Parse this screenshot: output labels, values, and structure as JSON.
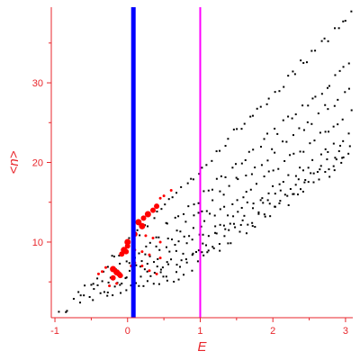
{
  "chart_data": {
    "type": "scatter",
    "title": "",
    "xlabel": "E",
    "ylabel": "<n>",
    "xlim": [
      -1.05,
      3.1
    ],
    "ylim": [
      0.5,
      39.5
    ],
    "x_ticks": [
      -1,
      0,
      1,
      2,
      3
    ],
    "y_ticks": [
      10,
      20,
      30
    ],
    "grid": false,
    "colors": {
      "axis": "#e8262b",
      "background_points": "#000000",
      "highlight_points": "#ff0000",
      "vline_blue": "#0000ff",
      "vline_magenta": "#ff00ff"
    },
    "vlines": [
      {
        "x": 0.08,
        "color": "#0000ff",
        "width": "thick"
      },
      {
        "x": 1.0,
        "color": "#ff00ff",
        "width": "thin"
      }
    ],
    "series": [
      {
        "color": "#000000",
        "marker": "dot",
        "bands": [
          {
            "x0": -0.95,
            "y0": 0.8,
            "x1": 3.1,
            "y1": 39.0,
            "n": 70
          },
          {
            "x0": -0.7,
            "y0": 2.0,
            "x1": 3.1,
            "y1": 32.5,
            "n": 58
          },
          {
            "x0": -0.5,
            "y0": 2.5,
            "x1": 3.1,
            "y1": 29.5,
            "n": 50
          },
          {
            "x0": -0.3,
            "y0": 3.2,
            "x1": 3.1,
            "y1": 26.5,
            "n": 48
          },
          {
            "x0": -0.1,
            "y0": 3.6,
            "x1": 3.1,
            "y1": 23.5,
            "n": 46
          },
          {
            "x0": 0.1,
            "y0": 4.0,
            "x1": 3.1,
            "y1": 22.0,
            "n": 40
          },
          {
            "x0": 0.3,
            "y0": 4.3,
            "x1": 3.1,
            "y1": 21.5,
            "n": 36
          },
          {
            "x0": 0.5,
            "y0": 4.6,
            "x1": 3.0,
            "y1": 20.0,
            "n": 30
          }
        ]
      },
      {
        "color": "#ff0000",
        "marker": "dot",
        "points": [
          [
            -0.2,
            6.6,
            6
          ],
          [
            -0.15,
            6.2,
            6
          ],
          [
            -0.1,
            5.8,
            5
          ],
          [
            -0.2,
            5.5,
            5
          ],
          [
            -0.12,
            6.0,
            5
          ],
          [
            -0.05,
            9.0,
            6
          ],
          [
            -0.08,
            8.5,
            5
          ],
          [
            -0.02,
            8.8,
            5
          ],
          [
            0.0,
            10.0,
            6
          ],
          [
            0.0,
            9.5,
            5
          ],
          [
            0.15,
            12.5,
            6
          ],
          [
            0.2,
            12.0,
            6
          ],
          [
            0.22,
            13.0,
            5
          ],
          [
            0.28,
            13.5,
            6
          ],
          [
            0.35,
            14.0,
            5
          ],
          [
            0.4,
            14.5,
            5
          ],
          [
            0.1,
            11.0,
            5
          ],
          [
            -0.35,
            6.3,
            2
          ],
          [
            -0.3,
            6.8,
            2
          ],
          [
            -0.4,
            6.0,
            2
          ],
          [
            0.05,
            7.0,
            2
          ],
          [
            0.1,
            7.4,
            2
          ],
          [
            0.2,
            7.0,
            2
          ],
          [
            0.3,
            6.4,
            2
          ],
          [
            0.4,
            6.0,
            2
          ],
          [
            0.1,
            9.0,
            2
          ],
          [
            0.2,
            8.8,
            2
          ],
          [
            0.3,
            8.4,
            2
          ],
          [
            0.45,
            8.0,
            2
          ],
          [
            0.25,
            10.8,
            2
          ],
          [
            0.35,
            10.5,
            2
          ],
          [
            0.45,
            10.0,
            2
          ],
          [
            0.45,
            15.5,
            2
          ],
          [
            0.5,
            15.8,
            2
          ],
          [
            0.6,
            16.5,
            2
          ],
          [
            -0.25,
            4.5,
            2
          ],
          [
            -0.15,
            4.8,
            2
          ]
        ]
      }
    ]
  }
}
